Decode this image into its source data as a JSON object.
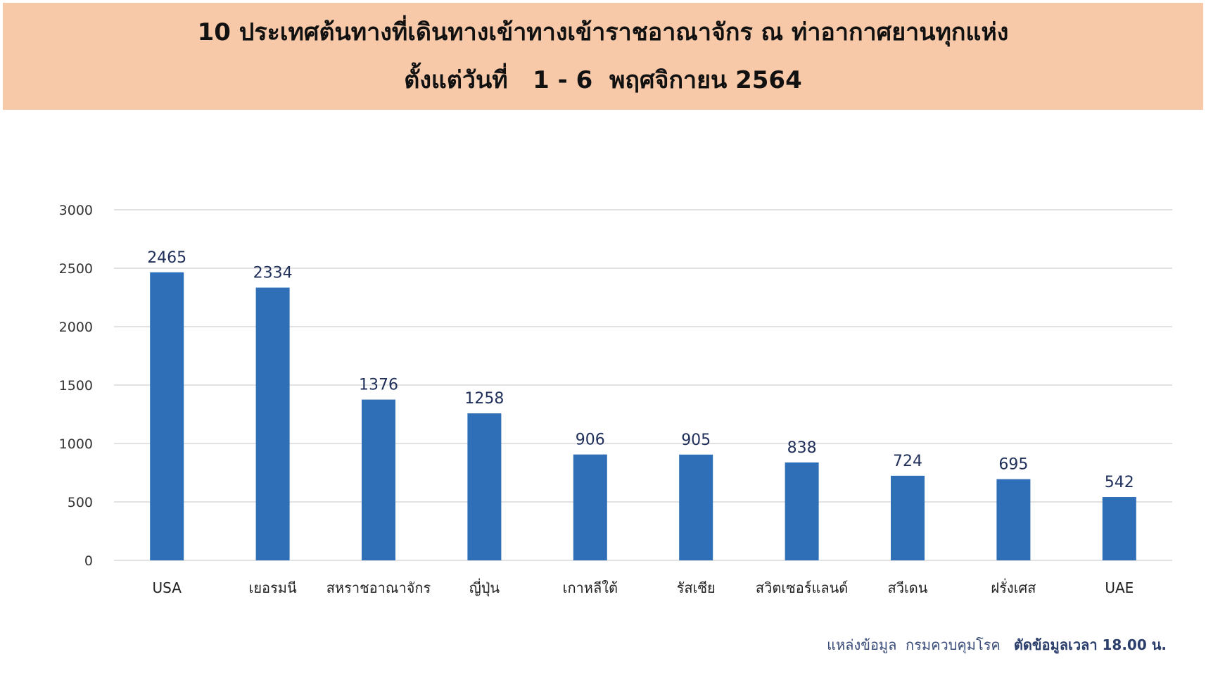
{
  "header": {
    "title_line1": "10 ประเทศต้นทางที่เดินทางเข้าทางเข้าราชอาณาจักร ณ ท่าอากาศยานทุกแห่ง",
    "title_line2": "ตั้งแต่วันที่   1 - 6  พฤศจิกายน 2564"
  },
  "footer": {
    "source": "แหล่งข้อมูล  กรมควบคุมโรค",
    "cutoff": "ตัดข้อมูลเวลา 18.00 น."
  },
  "colors": {
    "banner": "#f8c9a8",
    "bar": "#2e6fb7",
    "grid": "#d9d9d9"
  },
  "chart_data": {
    "type": "bar",
    "title": "10 ประเทศต้นทางที่เดินทางเข้าทางเข้าราชอาณาจักร ณ ท่าอากาศยานทุกแห่ง ตั้งแต่วันที่ 1 - 6 พฤศจิกายน 2564",
    "categories": [
      "USA",
      "เยอรมนี",
      "สหราชอาณาจักร",
      "ญี่ปุ่น",
      "เกาหลีใต้",
      "รัสเซีย",
      "สวิตเซอร์แลนด์",
      "สวีเดน",
      "ฝรั่งเศส",
      "UAE"
    ],
    "values": [
      2465,
      2334,
      1376,
      1258,
      906,
      905,
      838,
      724,
      695,
      542
    ],
    "ylim": [
      0,
      3000
    ],
    "yticks": [
      0,
      500,
      1000,
      1500,
      2000,
      2500,
      3000
    ],
    "grid": true,
    "data_labels": true,
    "xlabel": "",
    "ylabel": ""
  }
}
